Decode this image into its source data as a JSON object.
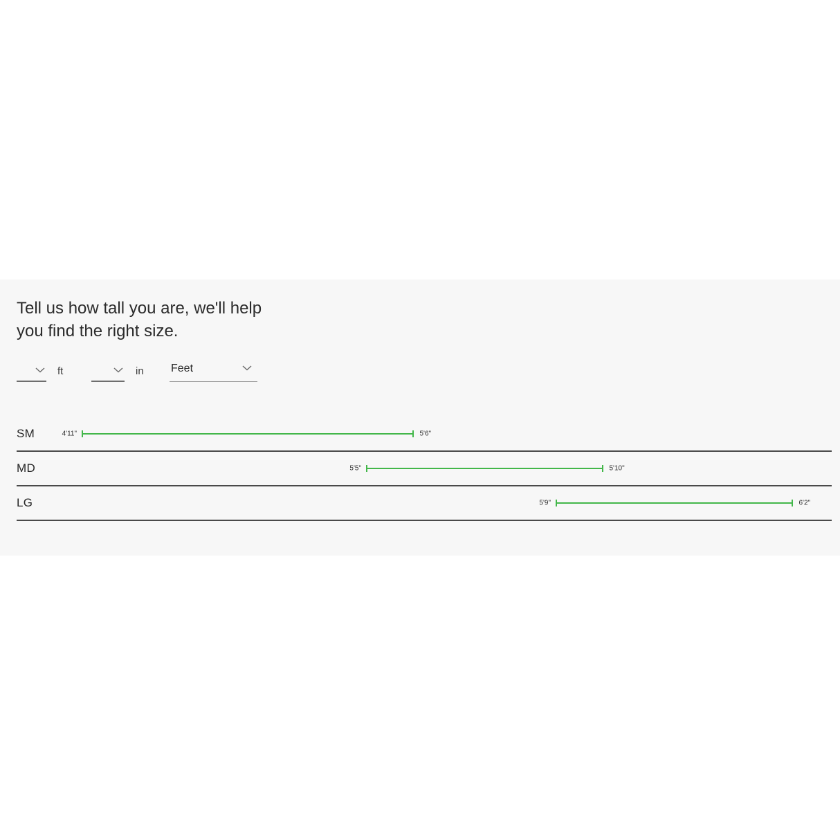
{
  "section": {
    "heading": "Tell us how tall you are, we'll help you find the right size.",
    "heading_lines": [
      "Tell us how tall you are, we'll help",
      "you find the right size."
    ],
    "controls": {
      "feet_select_value": "",
      "feet_unit_label": "ft",
      "inches_select_value": "",
      "inches_unit_label": "in",
      "unit_select_value": "Feet"
    },
    "size_chart": {
      "type": "range-bars",
      "unit": "inches",
      "bar_color": "#43b74a",
      "rows": [
        {
          "size": "SM",
          "min_label": "4'11\"",
          "max_label": "5'6\"",
          "min_in": 59,
          "max_in": 66
        },
        {
          "size": "MD",
          "min_label": "5'5\"",
          "max_label": "5'10\"",
          "min_in": 65,
          "max_in": 70
        },
        {
          "size": "LG",
          "min_label": "5'9\"",
          "max_label": "6'2\"",
          "min_in": 69,
          "max_in": 74
        }
      ]
    },
    "colors": {
      "section_background": "#f7f7f7",
      "divider": "#4a4a4a",
      "text": "#2b2b2b"
    }
  }
}
